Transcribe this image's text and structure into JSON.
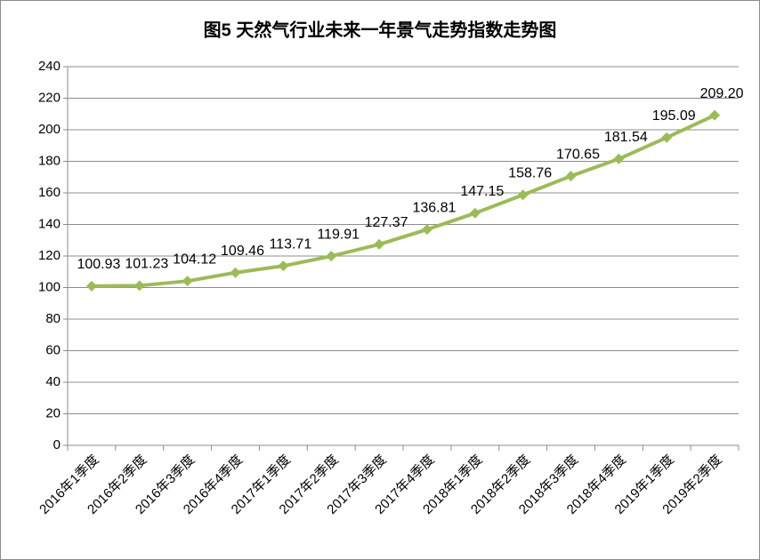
{
  "chart_data": {
    "type": "line",
    "title": "图5 天然气行业未来一年景气走势指数走势图",
    "categories": [
      "2016年1季度",
      "2016年2季度",
      "2016年3季度",
      "2016年4季度",
      "2017年1季度",
      "2017年2季度",
      "2017年3季度",
      "2017年4季度",
      "2018年1季度",
      "2018年2季度",
      "2018年3季度",
      "2018年4季度",
      "2019年1季度",
      "2019年2季度"
    ],
    "values": [
      100.93,
      101.23,
      104.12,
      109.46,
      113.71,
      119.91,
      127.37,
      136.81,
      147.15,
      158.76,
      170.65,
      181.54,
      195.09,
      209.2
    ],
    "value_labels": [
      "100.93",
      "101.23",
      "104.12",
      "109.46",
      "113.71",
      "119.91",
      "127.37",
      "136.81",
      "147.15",
      "158.76",
      "170.65",
      "181.54",
      "195.09",
      "209.20"
    ],
    "color": "#9bbb59",
    "ylim": [
      0,
      240
    ],
    "yticks": [
      0,
      20,
      40,
      60,
      80,
      100,
      120,
      140,
      160,
      180,
      200,
      220,
      240
    ],
    "grid": true
  }
}
